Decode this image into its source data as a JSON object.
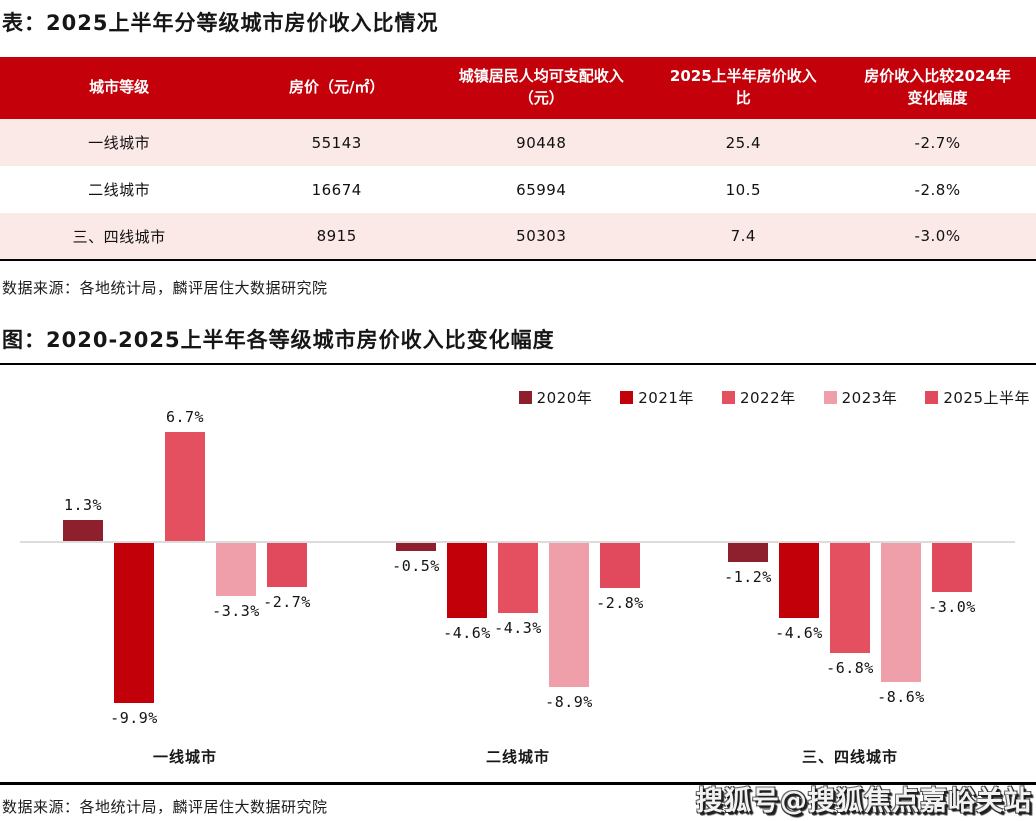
{
  "table_section": {
    "title": "表：2025上半年分等级城市房价收入比情况",
    "columns": [
      "城市等级",
      "房价（元/㎡）",
      "城镇居民人均可支配收入（元）",
      "2025上半年房价收入比",
      "房价收入比较2024年变化幅度"
    ],
    "rows": [
      {
        "tier": "一线城市",
        "price": "55143",
        "income": "90448",
        "ratio": "25.4",
        "change": "-2.7%"
      },
      {
        "tier": "二线城市",
        "price": "16674",
        "income": "65994",
        "ratio": "10.5",
        "change": "-2.8%"
      },
      {
        "tier": "三、四线城市",
        "price": "8915",
        "income": "50303",
        "ratio": "7.4",
        "change": "-3.0%"
      }
    ],
    "source": "数据来源：各地统计局，麟评居住大数据研究院",
    "colors": {
      "header_bg": "#C4000A",
      "header_text": "#FFFFFF",
      "row_pink_bg": "#FBE9E8",
      "row_white_bg": "#FFFFFF"
    }
  },
  "chart_section": {
    "title": "图：2020-2025上半年各等级城市房价收入比变化幅度",
    "source": "数据来源：各地统计局，麟评居住大数据研究院"
  },
  "chart_data": {
    "type": "bar",
    "title": "图：2020-2025上半年各等级城市房价收入比变化幅度",
    "categories": [
      "一线城市",
      "二线城市",
      "三、四线城市"
    ],
    "series": [
      {
        "name": "2020年",
        "color": "#8E1F2D",
        "values": [
          1.3,
          -0.5,
          -1.2
        ]
      },
      {
        "name": "2021年",
        "color": "#C10009",
        "values": [
          -9.9,
          -4.6,
          -4.6
        ]
      },
      {
        "name": "2022年",
        "color": "#E4505F",
        "values": [
          6.7,
          -4.3,
          -6.8
        ]
      },
      {
        "name": "2023年",
        "color": "#EE9FAA",
        "values": [
          -3.3,
          -8.9,
          -8.6
        ]
      },
      {
        "name": "2025上半年",
        "color": "#E04A5C",
        "values": [
          -2.7,
          -2.8,
          -3.0
        ]
      }
    ],
    "data_labels": [
      [
        "1.3%",
        "-9.9%",
        "6.7%",
        "-3.3%",
        "-2.7%"
      ],
      [
        "-0.5%",
        "-4.6%",
        "-4.3%",
        "-8.9%",
        "-2.8%"
      ],
      [
        "-1.2%",
        "-4.6%",
        "-6.8%",
        "-8.6%",
        "-3.0%"
      ]
    ],
    "xlabel": "",
    "ylabel": "",
    "ylim": [
      -10.5,
      7.5
    ],
    "grid": false,
    "legend_position": "top-right",
    "axis_line_color": "#DCDCDC"
  },
  "watermark": {
    "text": "搜狐号@搜狐焦点嘉峪关站"
  }
}
